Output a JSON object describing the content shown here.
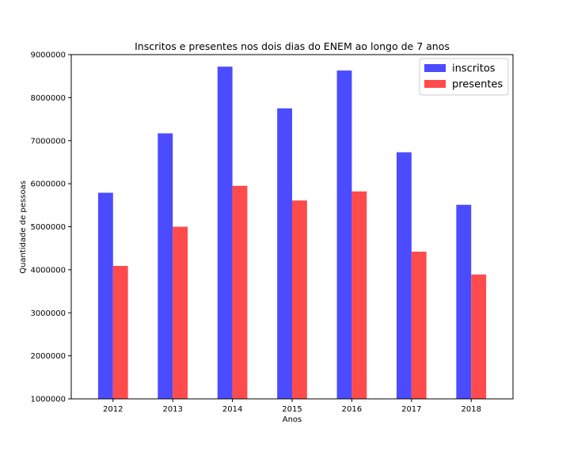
{
  "chart_data": {
    "type": "bar",
    "title": "Inscritos e presentes nos dois dias do ENEM ao longo de 7 anos",
    "xlabel": "Anos",
    "ylabel": "Quantidade de pessoas",
    "categories": [
      "2012",
      "2013",
      "2014",
      "2015",
      "2016",
      "2017",
      "2018"
    ],
    "ylim": [
      1000000,
      9000000
    ],
    "yticks": [
      1000000,
      2000000,
      3000000,
      4000000,
      5000000,
      6000000,
      7000000,
      8000000,
      9000000
    ],
    "ytick_labels": [
      "1000000",
      "2000000",
      "3000000",
      "4000000",
      "5000000",
      "6000000",
      "7000000",
      "8000000",
      "9000000"
    ],
    "grid": false,
    "legend_position": "top-right",
    "series": [
      {
        "name": "inscritos",
        "color": "#4b4bff",
        "values": [
          5790000,
          7170000,
          8720000,
          7750000,
          8630000,
          6730000,
          5510000
        ]
      },
      {
        "name": "presentes",
        "color": "#ff4b4b",
        "values": [
          4090000,
          5000000,
          5950000,
          5610000,
          5820000,
          4420000,
          3890000
        ]
      }
    ]
  }
}
